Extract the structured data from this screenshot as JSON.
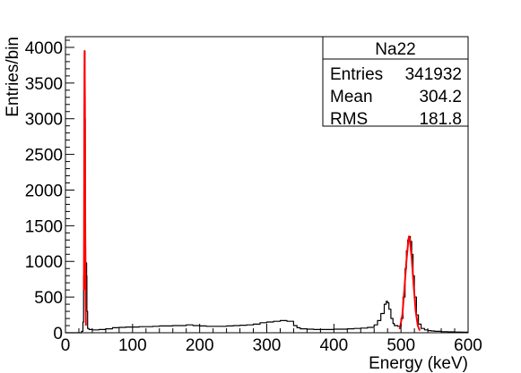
{
  "chart_data": {
    "type": "line",
    "title": "",
    "xlabel": "Energy (keV)",
    "ylabel": "Entries/bin",
    "xlim": [
      0,
      600
    ],
    "ylim": [
      0,
      4150
    ],
    "x_ticks": [
      0,
      100,
      200,
      300,
      400,
      500,
      600
    ],
    "y_ticks": [
      0,
      500,
      1000,
      1500,
      2000,
      2500,
      3000,
      3500,
      4000
    ],
    "grid": false,
    "colors": {
      "histogram": "#000000",
      "fit": "#ff0000"
    },
    "stats_box": {
      "name": "Na22",
      "rows": [
        {
          "label": "Entries",
          "value": "341932"
        },
        {
          "label": "Mean",
          "value": "304.2"
        },
        {
          "label": "RMS",
          "value": "181.8"
        }
      ]
    },
    "series": [
      {
        "values_kind": "histogram",
        "x": [
          0,
          5,
          10,
          15,
          20,
          24,
          26,
          27,
          28,
          28.5,
          29,
          29.5,
          30,
          30.5,
          31,
          31.5,
          32,
          33,
          35,
          40,
          50,
          60,
          70,
          80,
          90,
          100,
          110,
          120,
          130,
          140,
          150,
          160,
          170,
          180,
          190,
          200,
          210,
          220,
          230,
          240,
          250,
          260,
          270,
          280,
          290,
          300,
          310,
          320,
          330,
          340,
          345,
          350,
          360,
          370,
          380,
          390,
          400,
          410,
          420,
          430,
          440,
          450,
          460,
          465,
          470,
          475,
          478,
          480,
          482,
          485,
          488,
          490,
          495,
          500,
          503,
          506,
          508,
          510,
          512,
          514,
          516,
          518,
          520,
          523,
          526,
          530,
          535,
          540,
          545,
          550,
          560,
          570,
          580,
          590,
          600
        ],
        "y": [
          0,
          0,
          0,
          0,
          0,
          20,
          150,
          800,
          3200,
          3950,
          3000,
          1200,
          400,
          650,
          980,
          800,
          300,
          60,
          45,
          40,
          45,
          55,
          70,
          75,
          80,
          80,
          85,
          85,
          90,
          95,
          95,
          100,
          100,
          110,
          100,
          95,
          90,
          90,
          90,
          95,
          100,
          105,
          110,
          120,
          140,
          150,
          160,
          170,
          160,
          100,
          70,
          55,
          50,
          45,
          45,
          45,
          50,
          50,
          55,
          60,
          65,
          75,
          110,
          170,
          270,
          400,
          440,
          420,
          330,
          200,
          130,
          100,
          90,
          200,
          500,
          900,
          1150,
          1300,
          1350,
          1280,
          1100,
          800,
          500,
          250,
          120,
          60,
          40,
          30,
          25,
          20,
          15,
          12,
          10,
          8,
          5
        ]
      },
      {
        "name": "",
        "values_kind": "fit",
        "x": [
          27.5,
          28,
          28.5,
          29,
          29.5,
          30,
          30.5
        ],
        "y": [
          600,
          2800,
          3950,
          3200,
          1400,
          400,
          100
        ]
      },
      {
        "name": "",
        "values_kind": "fit",
        "x": [
          498,
          502,
          505,
          508,
          511,
          512,
          513,
          516,
          519,
          522,
          525,
          528
        ],
        "y": [
          50,
          250,
          600,
          1000,
          1300,
          1350,
          1320,
          1050,
          650,
          300,
          100,
          30
        ]
      }
    ]
  }
}
